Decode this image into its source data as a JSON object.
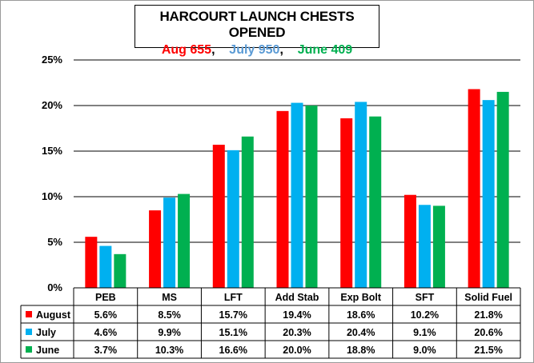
{
  "chart_data": {
    "type": "bar",
    "title": "HARCOURT LAUNCH CHESTS OPENED",
    "subtitle_parts": [
      {
        "text": "Aug 655",
        "color": "#ff0000"
      },
      {
        "text": ",",
        "color": "#000000"
      },
      {
        "text": "July 950",
        "color": "#5b9bd5"
      },
      {
        "text": ",",
        "color": "#000000"
      },
      {
        "text": "June 409",
        "color": "#00b050"
      }
    ],
    "categories": [
      "PEB",
      "MS",
      "LFT",
      "Add Stab",
      "Exp Bolt",
      "SFT",
      "Solid Fuel"
    ],
    "series": [
      {
        "name": "August",
        "color": "#ff0000",
        "values": [
          5.6,
          8.5,
          15.7,
          19.4,
          18.6,
          10.2,
          21.8
        ],
        "labels": [
          "5.6%",
          "8.5%",
          "15.7%",
          "19.4%",
          "18.6%",
          "10.2%",
          "21.8%"
        ]
      },
      {
        "name": "July",
        "color": "#00b0f0",
        "values": [
          4.6,
          9.9,
          15.1,
          20.3,
          20.4,
          9.1,
          20.6
        ],
        "labels": [
          "4.6%",
          "9.9%",
          "15.1%",
          "20.3%",
          "20.4%",
          "9.1%",
          "20.6%"
        ]
      },
      {
        "name": "June",
        "color": "#00b050",
        "values": [
          3.7,
          10.3,
          16.6,
          20.0,
          18.8,
          9.0,
          21.5
        ],
        "labels": [
          "3.7%",
          "10.3%",
          "16.6%",
          "20.0%",
          "18.8%",
          "9.0%",
          "21.5%"
        ]
      }
    ],
    "ylim": [
      0,
      25
    ],
    "yticks": [
      0,
      5,
      10,
      15,
      20,
      25
    ],
    "ytick_labels": [
      "0%",
      "5%",
      "10%",
      "15%",
      "20%",
      "25%"
    ],
    "grid": true,
    "legend": "data-table"
  }
}
